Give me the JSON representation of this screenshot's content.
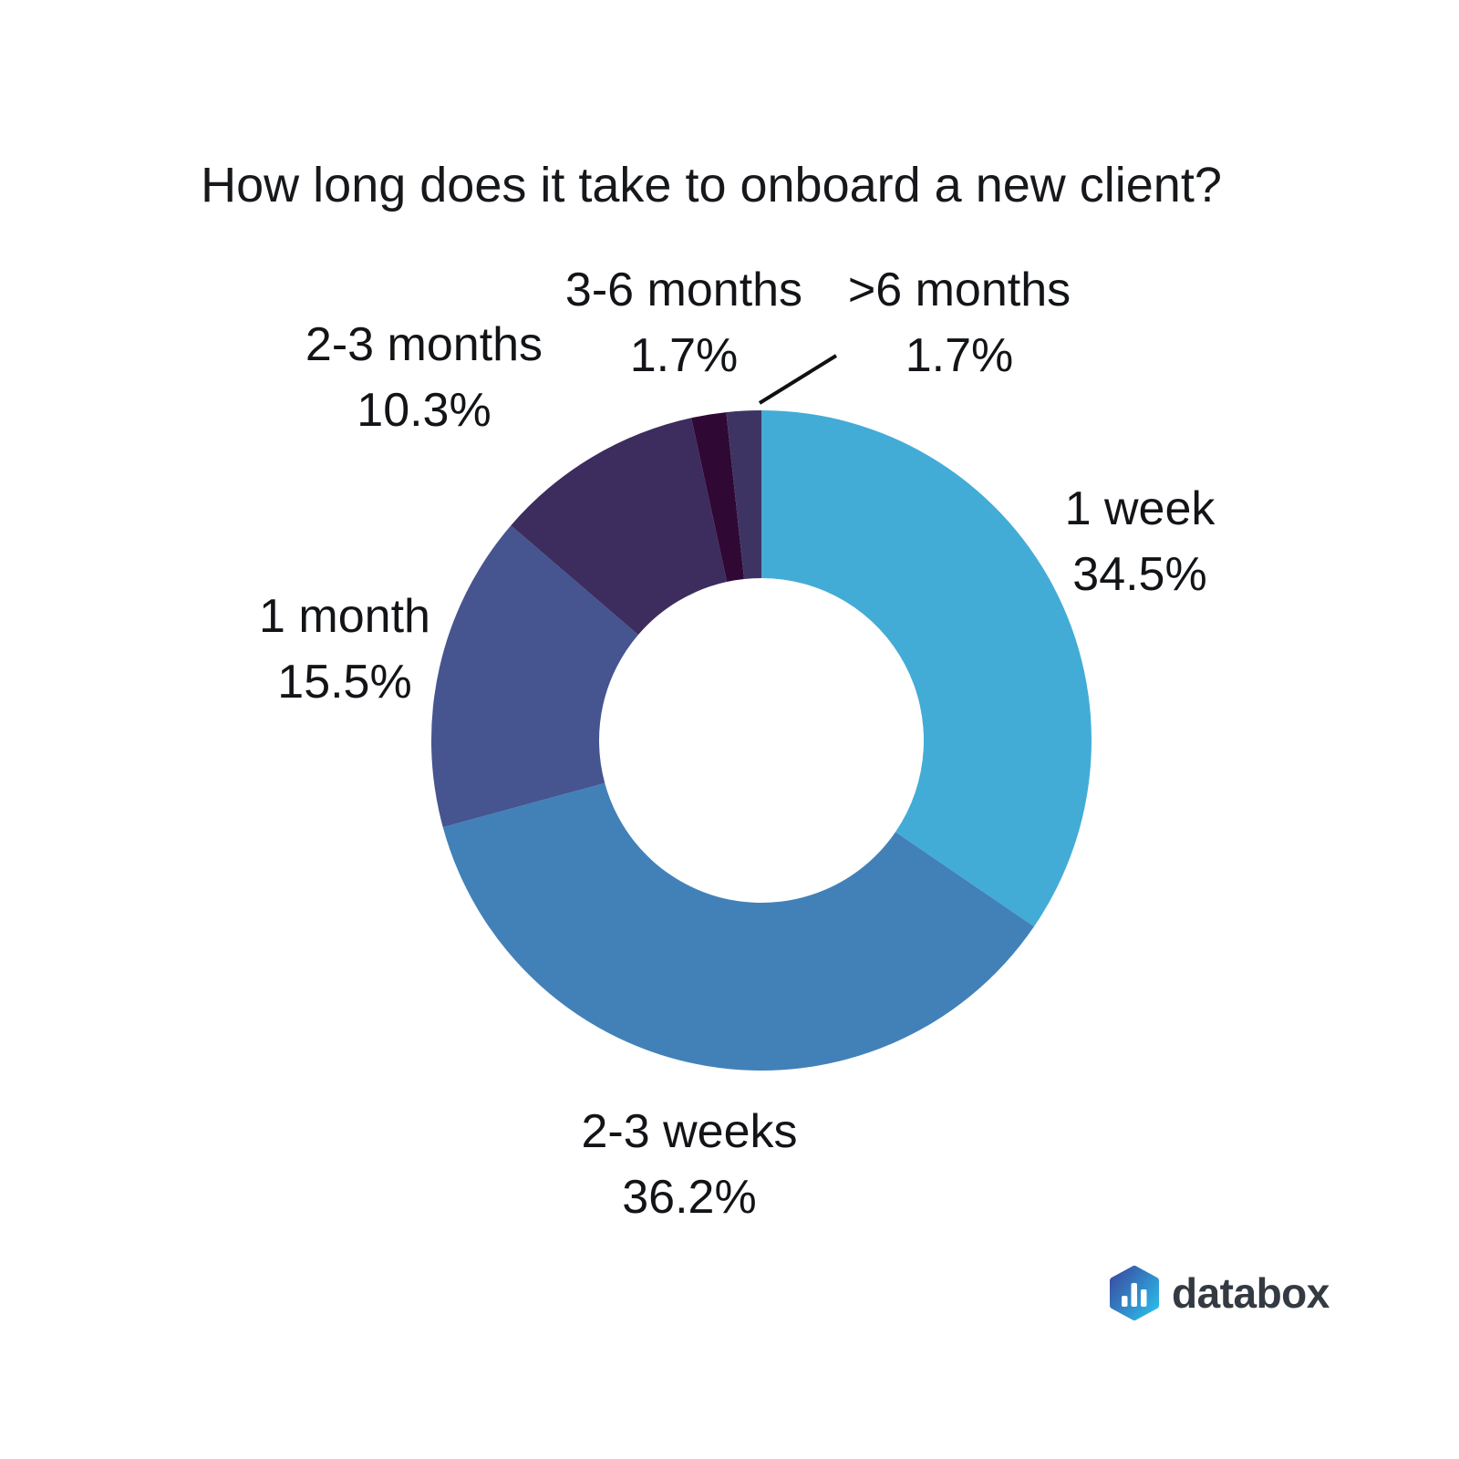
{
  "title": "How long does it take to onboard a new client?",
  "chart_data": {
    "type": "pie",
    "donut": true,
    "title": "How long does it take to onboard a new client?",
    "start_angle_deg": 0,
    "direction": "clockwise",
    "legend_position": "none",
    "labels_outside": true,
    "slices": [
      {
        "label": "1 week",
        "value": 34.5,
        "pct_label": "34.5%",
        "color": "#42acd6"
      },
      {
        "label": "2-3 weeks",
        "value": 36.2,
        "pct_label": "36.2%",
        "color": "#4181b8"
      },
      {
        "label": "1 month",
        "value": 15.5,
        "pct_label": "15.5%",
        "color": "#465490"
      },
      {
        "label": "2-3 months",
        "value": 10.3,
        "pct_label": "10.3%",
        "color": "#3c2d5e"
      },
      {
        "label": "3-6 months",
        "value": 1.7,
        "pct_label": "1.7%",
        "color": "#300834"
      },
      {
        "label": ">6 months",
        "value": 1.7,
        "pct_label": "1.7%",
        "color": "#3e3464"
      }
    ]
  },
  "colors": {
    "background": "#ffffff",
    "text": "#121417",
    "callout_line": "#111111",
    "logo_text": "#343a41",
    "logo_gradient_start": "#3a4ba0",
    "logo_gradient_end": "#2cb9e8"
  },
  "logo": {
    "text": "databox",
    "icon": "databox-hexagon-bars-icon"
  }
}
